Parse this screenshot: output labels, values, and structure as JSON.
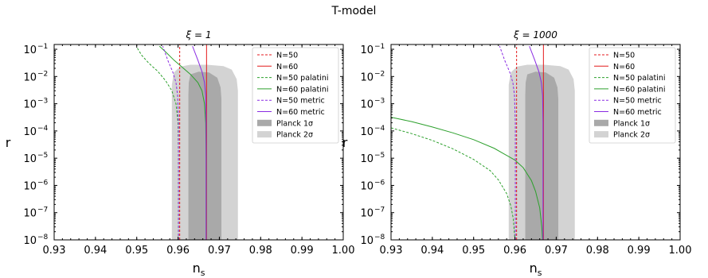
{
  "figure": {
    "suptitle": "T-model"
  },
  "chart_data": [
    {
      "type": "line",
      "title": "ξ = 1",
      "xlabel": "n",
      "xlabel_sub": "s",
      "ylabel": "r",
      "xlim": [
        0.93,
        1.0
      ],
      "ylim": [
        1e-08,
        0.15
      ],
      "yscale": "log",
      "grid": false,
      "legend_position": "top-right",
      "x_ticks": [
        "0.93",
        "0.94",
        "0.95",
        "0.96",
        "0.97",
        "0.98",
        "0.99",
        "1.00"
      ],
      "y_ticks": [
        {
          "base": "10",
          "exp": "−8"
        },
        {
          "base": "10",
          "exp": "−7"
        },
        {
          "base": "10",
          "exp": "−6"
        },
        {
          "base": "10",
          "exp": "−5"
        },
        {
          "base": "10",
          "exp": "−4"
        },
        {
          "base": "10",
          "exp": "−3"
        },
        {
          "base": "10",
          "exp": "−2"
        },
        {
          "base": "10",
          "exp": "−1"
        }
      ],
      "contours": [
        {
          "name": "Planck 2σ",
          "color": "#d3d3d3",
          "points": [
            [
              0.9585,
              1e-08
            ],
            [
              0.9745,
              1e-08
            ],
            [
              0.9745,
              0.003
            ],
            [
              0.9742,
              0.008
            ],
            [
              0.973,
              0.018
            ],
            [
              0.971,
              0.024
            ],
            [
              0.967,
              0.027
            ],
            [
              0.963,
              0.027
            ],
            [
              0.9605,
              0.023
            ],
            [
              0.959,
              0.014
            ],
            [
              0.9585,
              0.005
            ]
          ]
        },
        {
          "name": "Planck 1σ",
          "color": "#a9a9a9",
          "points": [
            [
              0.9625,
              1e-08
            ],
            [
              0.9705,
              1e-08
            ],
            [
              0.9705,
              0.0015
            ],
            [
              0.9703,
              0.004
            ],
            [
              0.9695,
              0.009
            ],
            [
              0.9675,
              0.014
            ],
            [
              0.965,
              0.015
            ],
            [
              0.963,
              0.012
            ],
            [
              0.9626,
              0.006
            ],
            [
              0.9625,
              0.002
            ]
          ]
        }
      ],
      "series": [
        {
          "name": "N=50",
          "color": "#e41a1c",
          "dash": true,
          "points": [
            [
              0.9604,
              1e-08
            ],
            [
              0.9604,
              0.15
            ]
          ]
        },
        {
          "name": "N=60",
          "color": "#e41a1c",
          "dash": false,
          "points": [
            [
              0.9669,
              1e-08
            ],
            [
              0.9669,
              0.15
            ]
          ]
        },
        {
          "name": "N=50 palatini",
          "color": "#2ca02c",
          "dash": true,
          "points": [
            [
              0.9601,
              1e-08
            ],
            [
              0.9601,
              1e-05
            ],
            [
              0.96,
              0.0002
            ],
            [
              0.9595,
              0.001
            ],
            [
              0.9585,
              0.003
            ],
            [
              0.957,
              0.007
            ],
            [
              0.955,
              0.016
            ],
            [
              0.953,
              0.03
            ],
            [
              0.9512,
              0.06
            ],
            [
              0.95,
              0.12
            ]
          ]
        },
        {
          "name": "N=60 palatini",
          "color": "#2ca02c",
          "dash": false,
          "points": [
            [
              0.9668,
              1e-08
            ],
            [
              0.9668,
              1e-05
            ],
            [
              0.9667,
              0.0002
            ],
            [
              0.9664,
              0.001
            ],
            [
              0.9658,
              0.003
            ],
            [
              0.9648,
              0.006
            ],
            [
              0.963,
              0.012
            ],
            [
              0.961,
              0.022
            ],
            [
              0.959,
              0.04
            ],
            [
              0.957,
              0.08
            ],
            [
              0.9555,
              0.13
            ]
          ]
        },
        {
          "name": "N=50 metric",
          "color": "#8a2be2",
          "dash": true,
          "points": [
            [
              0.9601,
              1e-08
            ],
            [
              0.9601,
              0.0002
            ],
            [
              0.9599,
              0.002
            ],
            [
              0.9595,
              0.006
            ],
            [
              0.9587,
              0.015
            ],
            [
              0.9575,
              0.04
            ],
            [
              0.9563,
              0.13
            ]
          ]
        },
        {
          "name": "N=60 metric",
          "color": "#8a2be2",
          "dash": false,
          "points": [
            [
              0.9668,
              1e-08
            ],
            [
              0.9668,
              0.0002
            ],
            [
              0.9667,
              0.002
            ],
            [
              0.9664,
              0.006
            ],
            [
              0.9658,
              0.015
            ],
            [
              0.9648,
              0.04
            ],
            [
              0.9635,
              0.13
            ]
          ]
        }
      ]
    },
    {
      "type": "line",
      "title": "ξ = 1000",
      "xlabel": "n",
      "xlabel_sub": "s",
      "ylabel": "r",
      "xlim": [
        0.93,
        1.0
      ],
      "ylim": [
        1e-08,
        0.15
      ],
      "yscale": "log",
      "grid": false,
      "legend_position": "top-right",
      "x_ticks": [
        "0.93",
        "0.94",
        "0.95",
        "0.96",
        "0.97",
        "0.98",
        "0.99",
        "1.00"
      ],
      "y_ticks": [
        {
          "base": "10",
          "exp": "−8"
        },
        {
          "base": "10",
          "exp": "−7"
        },
        {
          "base": "10",
          "exp": "−6"
        },
        {
          "base": "10",
          "exp": "−5"
        },
        {
          "base": "10",
          "exp": "−4"
        },
        {
          "base": "10",
          "exp": "−3"
        },
        {
          "base": "10",
          "exp": "−2"
        },
        {
          "base": "10",
          "exp": "−1"
        }
      ],
      "contours": [
        {
          "name": "Planck 2σ",
          "color": "#d3d3d3",
          "points": [
            [
              0.9585,
              1e-08
            ],
            [
              0.9745,
              1e-08
            ],
            [
              0.9745,
              0.003
            ],
            [
              0.9742,
              0.008
            ],
            [
              0.973,
              0.018
            ],
            [
              0.971,
              0.024
            ],
            [
              0.967,
              0.027
            ],
            [
              0.963,
              0.027
            ],
            [
              0.9605,
              0.023
            ],
            [
              0.959,
              0.014
            ],
            [
              0.9585,
              0.005
            ]
          ]
        },
        {
          "name": "Planck 1σ",
          "color": "#a9a9a9",
          "points": [
            [
              0.9625,
              1e-08
            ],
            [
              0.9705,
              1e-08
            ],
            [
              0.9705,
              0.0015
            ],
            [
              0.9703,
              0.004
            ],
            [
              0.9695,
              0.009
            ],
            [
              0.9675,
              0.014
            ],
            [
              0.965,
              0.015
            ],
            [
              0.963,
              0.012
            ],
            [
              0.9626,
              0.006
            ],
            [
              0.9625,
              0.002
            ]
          ]
        }
      ],
      "series": [
        {
          "name": "N=50",
          "color": "#e41a1c",
          "dash": true,
          "points": [
            [
              0.9604,
              1e-08
            ],
            [
              0.9604,
              0.15
            ]
          ]
        },
        {
          "name": "N=60",
          "color": "#e41a1c",
          "dash": false,
          "points": [
            [
              0.9669,
              1e-08
            ],
            [
              0.9669,
              0.15
            ]
          ]
        },
        {
          "name": "N=50 palatini",
          "color": "#2ca02c",
          "dash": true,
          "points": [
            [
              0.93,
              0.00013
            ],
            [
              0.935,
              8e-05
            ],
            [
              0.94,
              4.5e-05
            ],
            [
              0.945,
              2.2e-05
            ],
            [
              0.95,
              9e-06
            ],
            [
              0.954,
              3.5e-06
            ],
            [
              0.956,
              1.6e-06
            ],
            [
              0.958,
              5e-07
            ],
            [
              0.959,
              1.8e-07
            ],
            [
              0.9596,
              6e-08
            ],
            [
              0.96,
              1e-08
            ]
          ]
        },
        {
          "name": "N=60 palatini",
          "color": "#2ca02c",
          "dash": false,
          "points": [
            [
              0.93,
              0.00032
            ],
            [
              0.935,
              0.00022
            ],
            [
              0.94,
              0.00014
            ],
            [
              0.945,
              8.5e-05
            ],
            [
              0.95,
              4.8e-05
            ],
            [
              0.955,
              2.3e-05
            ],
            [
              0.96,
              8.5e-06
            ],
            [
              0.962,
              4.5e-06
            ],
            [
              0.964,
              1.5e-06
            ],
            [
              0.965,
              6e-07
            ],
            [
              0.966,
              1.5e-07
            ],
            [
              0.9665,
              3e-08
            ],
            [
              0.9667,
              1e-08
            ]
          ]
        },
        {
          "name": "N=50 metric",
          "color": "#8a2be2",
          "dash": true,
          "points": [
            [
              0.9601,
              1e-08
            ],
            [
              0.9601,
              0.0002
            ],
            [
              0.9599,
              0.002
            ],
            [
              0.9595,
              0.006
            ],
            [
              0.9587,
              0.015
            ],
            [
              0.9575,
              0.04
            ],
            [
              0.9563,
              0.13
            ]
          ]
        },
        {
          "name": "N=60 metric",
          "color": "#8a2be2",
          "dash": false,
          "points": [
            [
              0.9668,
              1e-08
            ],
            [
              0.9668,
              0.0002
            ],
            [
              0.9667,
              0.002
            ],
            [
              0.9664,
              0.006
            ],
            [
              0.9658,
              0.015
            ],
            [
              0.9648,
              0.04
            ],
            [
              0.9635,
              0.13
            ]
          ]
        }
      ]
    }
  ],
  "legend": {
    "entries": [
      {
        "label": "N=50",
        "kind": "line",
        "color": "#e41a1c",
        "dash": true
      },
      {
        "label": "N=60",
        "kind": "line",
        "color": "#e41a1c",
        "dash": false
      },
      {
        "label": "N=50 palatini",
        "kind": "line",
        "color": "#2ca02c",
        "dash": true
      },
      {
        "label": "N=60 palatini",
        "kind": "line",
        "color": "#2ca02c",
        "dash": false
      },
      {
        "label": "N=50 metric",
        "kind": "line",
        "color": "#8a2be2",
        "dash": true
      },
      {
        "label": "N=60 metric",
        "kind": "line",
        "color": "#8a2be2",
        "dash": false
      },
      {
        "label": "Planck 1σ",
        "kind": "patch",
        "color": "#a9a9a9"
      },
      {
        "label": "Planck 2σ",
        "kind": "patch",
        "color": "#d3d3d3"
      }
    ]
  }
}
